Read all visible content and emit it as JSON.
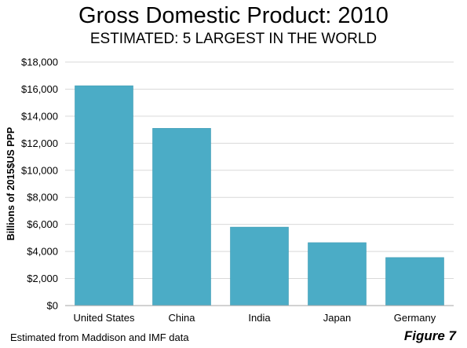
{
  "title": "Gross Domestic Product: 2010",
  "subtitle": "ESTIMATED: 5 LARGEST IN THE WORLD",
  "source_note": "Estimated from Maddison and IMF data",
  "figure_label": "Figure 7",
  "colors": {
    "bar": "#4BACC6",
    "grid": "#d9d9d9",
    "axis": "#a6a6a6"
  },
  "chart_data": {
    "type": "bar",
    "categories": [
      "United States",
      "China",
      "India",
      "Japan",
      "Germany"
    ],
    "values": [
      16250,
      13100,
      5800,
      4650,
      3550
    ],
    "ylabel": "Billions of 2015$US  PPP",
    "ylim": [
      0,
      18000
    ],
    "yticks": [
      0,
      2000,
      4000,
      6000,
      8000,
      10000,
      12000,
      14000,
      16000,
      18000
    ],
    "ytick_labels": [
      "$0",
      "$2,000",
      "$4,000",
      "$6,000",
      "$8,000",
      "$10,000",
      "$12,000",
      "$14,000",
      "$16,000",
      "$18,000"
    ],
    "grid": true,
    "legend": "none"
  }
}
